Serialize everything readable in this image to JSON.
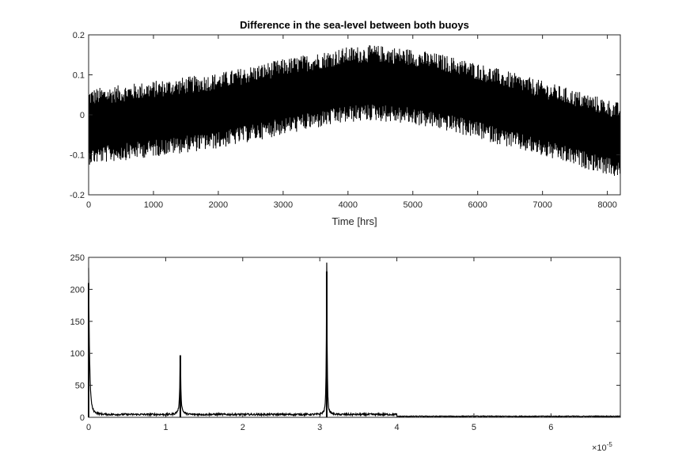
{
  "chart_data": [
    {
      "type": "line",
      "title": "Difference in the sea-level between both buoys",
      "xlabel": "Time [hrs]",
      "ylabel": "",
      "xlim": [
        0,
        8200
      ],
      "ylim": [
        -0.2,
        0.2
      ],
      "x_ticks": [
        0,
        1000,
        2000,
        3000,
        4000,
        5000,
        6000,
        7000,
        8000
      ],
      "x_tick_labels": [
        "0",
        "1000",
        "2000",
        "3000",
        "4000",
        "5000",
        "6000",
        "7000",
        "8000"
      ],
      "y_ticks": [
        -0.2,
        -0.1,
        0,
        0.1,
        0.2
      ],
      "y_tick_labels": [
        "-0.2",
        "-0.1",
        "0",
        "0.1",
        "0.2"
      ],
      "grid": false,
      "line_color": "#000000",
      "trend": {
        "x": [
          0,
          1000,
          2000,
          3000,
          4000,
          4400,
          5000,
          5500,
          6000,
          7000,
          8000,
          8200
        ],
        "y": [
          -0.03,
          -0.01,
          0.01,
          0.045,
          0.075,
          0.08,
          0.07,
          0.055,
          0.035,
          -0.01,
          -0.055,
          -0.065
        ]
      },
      "oscillation_amplitude": 0.095,
      "series": [
        {
          "values_note": ""
        }
      ]
    },
    {
      "type": "line",
      "title": "",
      "xlabel": "",
      "ylabel": "",
      "xlim": [
        0,
        6.9
      ],
      "ylim": [
        0,
        250
      ],
      "x_multiplier": "×10⁻⁵",
      "x_multiplier_base": "×10",
      "x_multiplier_exp": "-5",
      "x_ticks": [
        0,
        1,
        2,
        3,
        4,
        5,
        6
      ],
      "x_tick_labels": [
        "0",
        "1",
        "2",
        "3",
        "4",
        "5",
        "6"
      ],
      "y_ticks": [
        0,
        50,
        100,
        150,
        200,
        250
      ],
      "y_tick_labels": [
        "0",
        "50",
        "100",
        "150",
        "200",
        "250"
      ],
      "grid": false,
      "line_color": "#000000",
      "peaks": [
        {
          "x": 0.0,
          "y": 210
        },
        {
          "x": 1.19,
          "y": 97
        },
        {
          "x": 3.09,
          "y": 228
        }
      ]
    }
  ]
}
